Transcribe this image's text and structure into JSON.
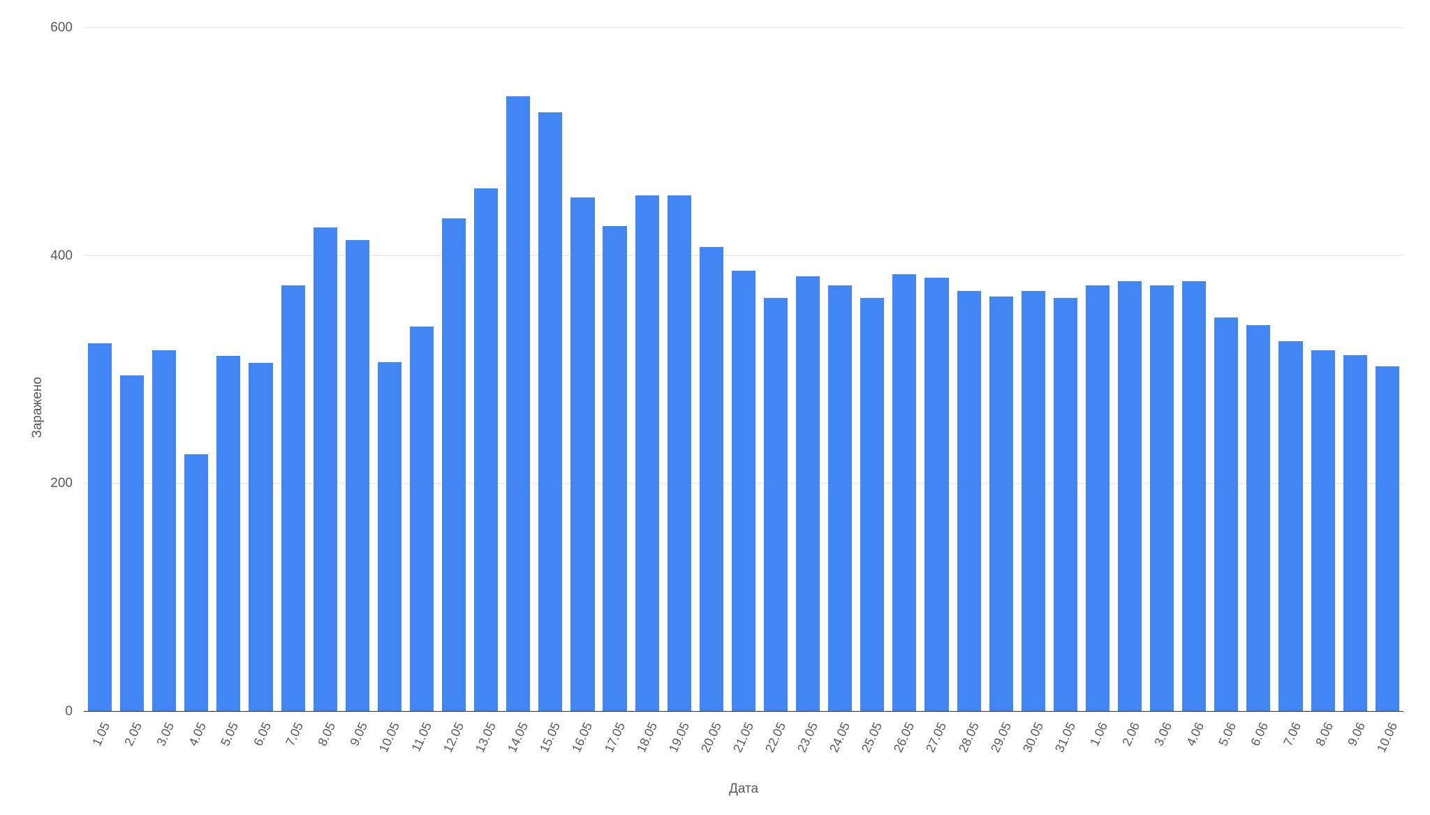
{
  "chart": {
    "type": "bar",
    "ylabel": "Заражено",
    "xlabel": "Дата",
    "label_fontsize": 19,
    "tick_fontsize": 19,
    "text_color": "#595959",
    "background_color": "#ffffff",
    "grid_color": "#e6e6e6",
    "baseline_color": "#333333",
    "bar_color": "#4285f4",
    "bar_width": 0.74,
    "ylim": [
      0,
      600
    ],
    "ytick_step": 200,
    "yticks": [
      0,
      200,
      400,
      600
    ],
    "categories": [
      "1.05",
      "2.05",
      "3.05",
      "4.05",
      "5.05",
      "6.05",
      "7.05",
      "8.05",
      "9.05",
      "10.05",
      "11.05",
      "12.05",
      "13.05",
      "14.05",
      "15.05",
      "16.05",
      "17.05",
      "18.05",
      "19.05",
      "20.05",
      "21.05",
      "22.05",
      "23.05",
      "24.05",
      "25.05",
      "26.05",
      "27.05",
      "28.05",
      "29.05",
      "30.05",
      "31.05",
      "1.06",
      "2.06",
      "3.06",
      "4.06",
      "5.06",
      "6.06",
      "7.06",
      "8.06",
      "9.06",
      "10.06"
    ],
    "values": [
      323,
      295,
      317,
      226,
      312,
      306,
      374,
      425,
      414,
      307,
      338,
      433,
      459,
      540,
      526,
      451,
      426,
      453,
      453,
      408,
      387,
      363,
      382,
      374,
      363,
      384,
      381,
      369,
      364,
      369,
      363,
      374,
      378,
      374,
      378,
      346,
      339,
      325,
      317,
      313,
      303
    ],
    "x_tick_rotation_deg": -65
  }
}
